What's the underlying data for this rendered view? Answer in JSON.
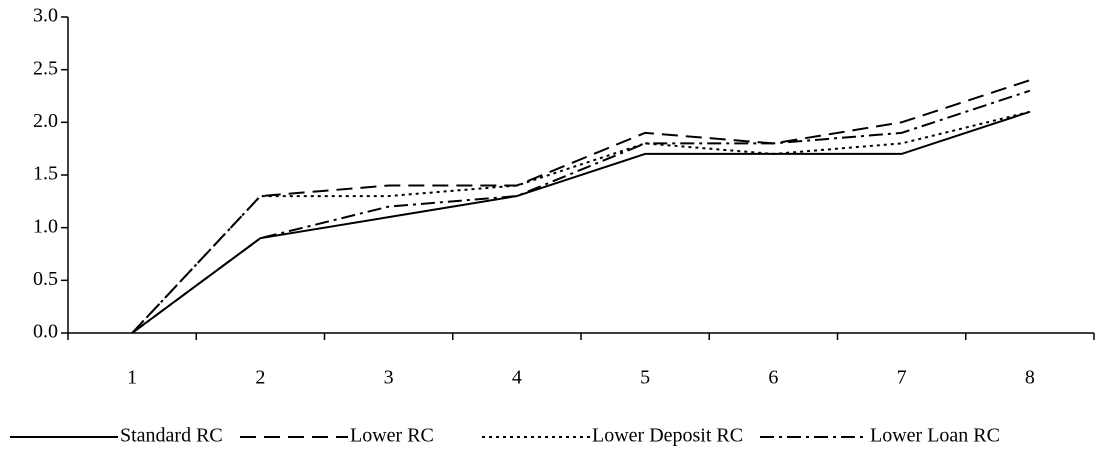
{
  "chart_data": {
    "type": "line",
    "categories": [
      "1",
      "2",
      "3",
      "4",
      "5",
      "6",
      "7",
      "8"
    ],
    "series": [
      {
        "name": "Standard RC",
        "color": "#000000",
        "dash": "solid",
        "values": [
          0,
          0.9,
          1.1,
          1.3,
          1.7,
          1.7,
          1.7,
          2.1
        ]
      },
      {
        "name": "Lower RC",
        "color": "#000000",
        "dash": "dashed",
        "values": [
          0,
          1.3,
          1.4,
          1.4,
          1.9,
          1.8,
          2.0,
          2.4
        ]
      },
      {
        "name": "Lower Deposit RC",
        "color": "#000000",
        "dash": "dotted",
        "values": [
          0,
          1.3,
          1.3,
          1.4,
          1.8,
          1.7,
          1.8,
          2.1
        ]
      },
      {
        "name": "Lower Loan RC",
        "color": "#000000",
        "dash": "dashdot",
        "values": [
          0,
          0.9,
          1.2,
          1.3,
          1.8,
          1.8,
          1.9,
          2.3
        ]
      }
    ],
    "ylim": [
      0,
      3
    ],
    "yticks": [
      {
        "value": 0,
        "label": "0.0"
      },
      {
        "value": 0.5,
        "label": "0.5"
      },
      {
        "value": 1,
        "label": "1.0"
      },
      {
        "value": 1.5,
        "label": "1.5"
      },
      {
        "value": 2,
        "label": "2.0"
      },
      {
        "value": 2.5,
        "label": "2.5"
      },
      {
        "value": 3,
        "label": "3.0"
      }
    ],
    "grid": false,
    "legend": "bottom"
  }
}
